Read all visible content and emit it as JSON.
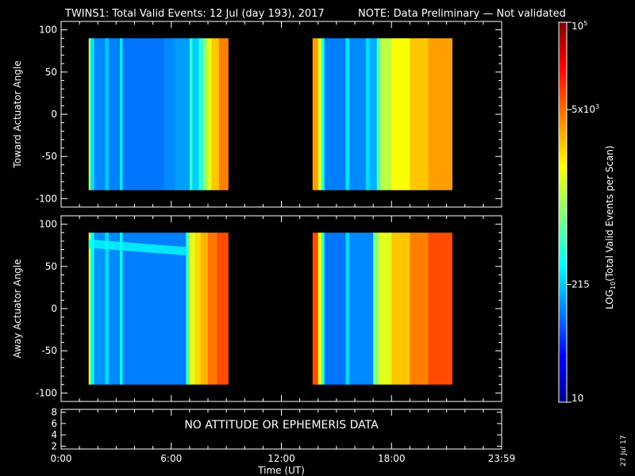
{
  "header": {
    "title": "TWINS1: Total Valid Events: 12 Jul (day 193), 2017",
    "note": "NOTE: Data Preliminary — Not validated",
    "note_color": "#ff2020"
  },
  "chart_data": [
    {
      "type": "heatmap",
      "panel": "top",
      "ylabel": "Toward Actuator Angle",
      "ylim": [
        -110,
        110
      ],
      "yticks": [
        100,
        50,
        0,
        -50,
        -100
      ],
      "xlim": [
        0,
        24
      ],
      "y_data_range": [
        -90,
        90
      ],
      "segments": [
        {
          "x_range": [
            1.5,
            9.1
          ],
          "stripes": [
            [
              1.5,
              1.6,
              0.55
            ],
            [
              1.6,
              1.8,
              0.35
            ],
            [
              1.8,
              2.4,
              0.26
            ],
            [
              2.4,
              2.6,
              0.32
            ],
            [
              2.6,
              3.2,
              0.25
            ],
            [
              3.2,
              3.35,
              0.36
            ],
            [
              3.35,
              5.6,
              0.24
            ],
            [
              5.6,
              6.2,
              0.26
            ],
            [
              6.2,
              7.0,
              0.28
            ],
            [
              7.0,
              7.15,
              0.42
            ],
            [
              7.15,
              7.5,
              0.33
            ],
            [
              7.5,
              7.75,
              0.42
            ],
            [
              7.75,
              7.95,
              0.52
            ],
            [
              7.95,
              8.2,
              0.6
            ],
            [
              8.2,
              8.6,
              0.68
            ],
            [
              8.6,
              9.1,
              0.75
            ]
          ]
        },
        {
          "x_range": [
            13.7,
            21.3
          ],
          "stripes": [
            [
              13.7,
              14.0,
              0.72
            ],
            [
              14.0,
              14.2,
              0.58
            ],
            [
              14.2,
              14.35,
              0.4
            ],
            [
              14.35,
              15.5,
              0.25
            ],
            [
              15.5,
              15.7,
              0.35
            ],
            [
              15.7,
              16.6,
              0.26
            ],
            [
              16.6,
              16.8,
              0.34
            ],
            [
              16.8,
              17.2,
              0.3
            ],
            [
              17.2,
              17.4,
              0.46
            ],
            [
              17.4,
              18.0,
              0.56
            ],
            [
              18.0,
              19.0,
              0.62
            ],
            [
              19.0,
              20.0,
              0.68
            ],
            [
              20.0,
              21.3,
              0.72
            ]
          ]
        }
      ]
    },
    {
      "type": "heatmap",
      "panel": "middle",
      "ylabel": "Away Actuator Angle",
      "ylim": [
        -110,
        110
      ],
      "yticks": [
        100,
        50,
        0,
        -50,
        -100
      ],
      "xlim": [
        0,
        24
      ],
      "y_data_range": [
        -90,
        90
      ],
      "band": {
        "x_range": [
          1.5,
          6.9
        ],
        "y_center_start": 77,
        "y_center_end": 68,
        "half_width": 5,
        "level": 0.38
      },
      "segments": [
        {
          "x_range": [
            1.5,
            9.1
          ],
          "stripes": [
            [
              1.5,
              1.6,
              0.6
            ],
            [
              1.6,
              1.8,
              0.38
            ],
            [
              1.8,
              2.4,
              0.27
            ],
            [
              2.4,
              2.6,
              0.34
            ],
            [
              2.6,
              3.2,
              0.26
            ],
            [
              3.2,
              3.35,
              0.38
            ],
            [
              3.35,
              6.8,
              0.25
            ],
            [
              6.8,
              6.95,
              0.42
            ],
            [
              6.95,
              7.3,
              0.6
            ],
            [
              7.3,
              7.6,
              0.66
            ],
            [
              7.6,
              8.0,
              0.7
            ],
            [
              8.0,
              8.5,
              0.76
            ],
            [
              8.5,
              9.1,
              0.8
            ]
          ]
        },
        {
          "x_range": [
            13.7,
            21.3
          ],
          "stripes": [
            [
              13.7,
              14.0,
              0.8
            ],
            [
              14.0,
              14.2,
              0.6
            ],
            [
              14.2,
              14.35,
              0.42
            ],
            [
              14.35,
              15.5,
              0.24
            ],
            [
              15.5,
              15.7,
              0.34
            ],
            [
              15.7,
              17.0,
              0.26
            ],
            [
              17.0,
              17.3,
              0.5
            ],
            [
              17.3,
              18.0,
              0.6
            ],
            [
              18.0,
              19.0,
              0.68
            ],
            [
              19.0,
              20.0,
              0.75
            ],
            [
              20.0,
              21.3,
              0.8
            ]
          ]
        }
      ]
    },
    {
      "type": "table",
      "panel": "bottom",
      "message": "NO ATTITUDE OR EPHEMERIS DATA",
      "yticks": [
        8,
        6,
        4,
        2
      ],
      "ylim": [
        1.5,
        8.5
      ],
      "xlabel": "Time (UT)",
      "xticks": [
        {
          "value": 0,
          "label": "0:00"
        },
        {
          "value": 6,
          "label": "6:00"
        },
        {
          "value": 12,
          "label": "12:00"
        },
        {
          "value": 18,
          "label": "18:00"
        },
        {
          "value": 24,
          "label": "23:59"
        }
      ]
    }
  ],
  "colorbar": {
    "label": "LOG",
    "label_sub": "10",
    "label_rest": "(Total Valid Events per Scan)",
    "ticks": [
      {
        "level": 1.0,
        "label": "10",
        "sup": "5"
      },
      {
        "level": 0.77,
        "label": "5x10",
        "sup": "3"
      },
      {
        "level": 0.31,
        "label": "215",
        "sup": ""
      },
      {
        "level": 0.0,
        "label": "10",
        "sup": ""
      }
    ]
  },
  "footer": {
    "date": "27 Jul 17"
  }
}
